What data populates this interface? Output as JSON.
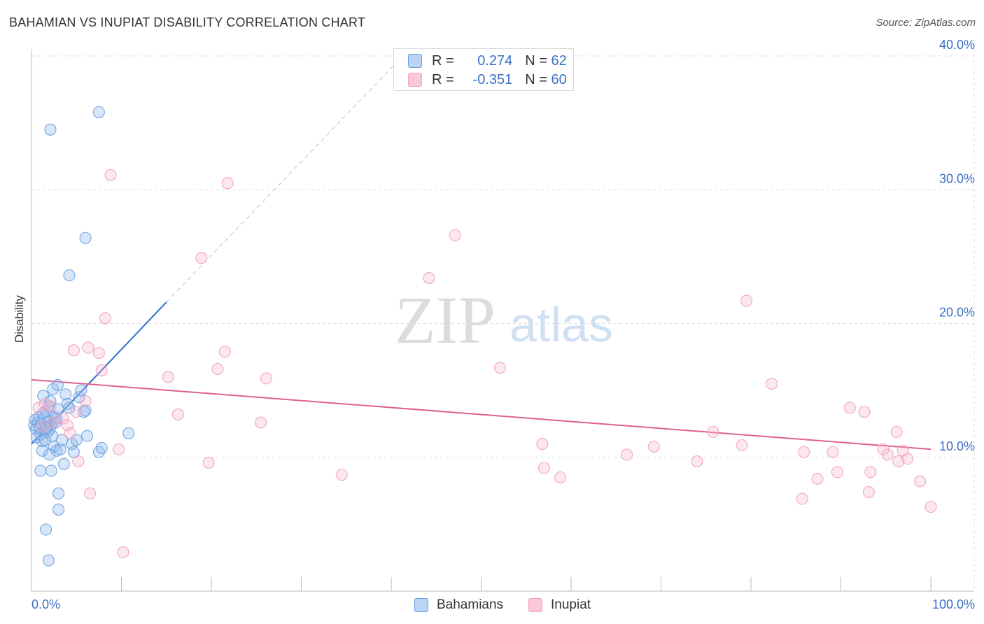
{
  "title": "BAHAMIAN VS INUPIAT DISABILITY CORRELATION CHART",
  "source": "Source: ZipAtlas.com",
  "watermark": {
    "zip": "ZIP",
    "atlas": "atlas"
  },
  "legend": {
    "rows": [
      {
        "r_label": "R =",
        "r_value": "0.274",
        "n_label": "N =",
        "n_value": "62"
      },
      {
        "r_label": "R =",
        "r_value": "-0.351",
        "n_label": "N =",
        "n_value": "60"
      }
    ]
  },
  "chart_data": {
    "type": "scatter",
    "title": "BAHAMIAN VS INUPIAT DISABILITY CORRELATION CHART",
    "xlabel": "",
    "ylabel": "Disability",
    "xlim": [
      0,
      100
    ],
    "ylim": [
      0,
      40
    ],
    "x_tick_labels": [
      "0.0%",
      "100.0%"
    ],
    "y_ticks": [
      10,
      20,
      30,
      40
    ],
    "y_tick_labels": [
      "10.0%",
      "20.0%",
      "30.0%",
      "40.0%"
    ],
    "grid": true,
    "legend_position": "bottom-center",
    "series": [
      {
        "name": "Bahamians",
        "color": "#6a9fe0",
        "line_color": "#2e6fd0",
        "trend": {
          "r": 0.274,
          "n": 62,
          "x_start": 0,
          "y_start": 11.0,
          "x_solid_end": 15,
          "y_solid_end": 21.6,
          "x_dash_end": 42,
          "y_dash_end": 40.5
        },
        "points": [
          [
            0.3,
            12.4
          ],
          [
            0.4,
            12.8
          ],
          [
            0.5,
            12.1
          ],
          [
            0.6,
            11.5
          ],
          [
            0.7,
            12.6
          ],
          [
            0.8,
            13.0
          ],
          [
            0.9,
            12.2
          ],
          [
            1.0,
            11.7
          ],
          [
            1.1,
            12.5
          ],
          [
            1.2,
            11.2
          ],
          [
            1.3,
            14.6
          ],
          [
            1.4,
            12.9
          ],
          [
            1.5,
            12.0
          ],
          [
            1.6,
            13.4
          ],
          [
            1.7,
            12.3
          ],
          [
            1.8,
            11.9
          ],
          [
            1.9,
            13.8
          ],
          [
            2.0,
            12.7
          ],
          [
            2.1,
            14.2
          ],
          [
            2.2,
            12.4
          ],
          [
            2.3,
            11.6
          ],
          [
            2.4,
            15.1
          ],
          [
            2.5,
            10.8
          ],
          [
            2.6,
            13.0
          ],
          [
            2.7,
            12.6
          ],
          [
            2.8,
            10.5
          ],
          [
            2.9,
            15.4
          ],
          [
            3.0,
            13.6
          ],
          [
            1.0,
            9.0
          ],
          [
            1.2,
            10.5
          ],
          [
            1.5,
            11.3
          ],
          [
            2.0,
            10.2
          ],
          [
            2.2,
            9.0
          ],
          [
            3.2,
            10.6
          ],
          [
            3.4,
            11.3
          ],
          [
            3.6,
            9.5
          ],
          [
            3.8,
            14.7
          ],
          [
            4.0,
            14.0
          ],
          [
            4.2,
            13.7
          ],
          [
            4.5,
            11.0
          ],
          [
            4.7,
            10.4
          ],
          [
            5.0,
            11.3
          ],
          [
            5.3,
            14.5
          ],
          [
            5.5,
            15.0
          ],
          [
            5.8,
            13.4
          ],
          [
            6.0,
            13.5
          ],
          [
            6.2,
            11.6
          ],
          [
            7.5,
            10.4
          ],
          [
            7.8,
            10.7
          ],
          [
            10.8,
            11.8
          ],
          [
            2.0,
            12.1
          ],
          [
            1.6,
            12.2
          ],
          [
            3.0,
            6.1
          ],
          [
            3.0,
            7.3
          ],
          [
            1.6,
            4.6
          ],
          [
            1.9,
            2.3
          ],
          [
            4.2,
            23.6
          ],
          [
            6.0,
            26.4
          ],
          [
            2.1,
            34.5
          ],
          [
            7.5,
            35.8
          ],
          [
            2.8,
            12.9
          ],
          [
            1.3,
            13.3
          ]
        ]
      },
      {
        "name": "Inupiat",
        "color": "#f0a0bb",
        "line_color": "#e0608f",
        "trend": {
          "r": -0.351,
          "n": 60,
          "x_start": 0,
          "y_start": 15.8,
          "x_end": 100,
          "y_end": 10.6
        },
        "points": [
          [
            0.8,
            13.7
          ],
          [
            1.2,
            12.3
          ],
          [
            1.5,
            14.0
          ],
          [
            2.1,
            13.8
          ],
          [
            2.4,
            12.6
          ],
          [
            3.5,
            12.9
          ],
          [
            4.0,
            12.4
          ],
          [
            4.3,
            11.8
          ],
          [
            5.0,
            13.4
          ],
          [
            5.2,
            9.7
          ],
          [
            6.0,
            14.2
          ],
          [
            6.5,
            7.3
          ],
          [
            6.3,
            18.2
          ],
          [
            4.7,
            18.0
          ],
          [
            7.5,
            17.8
          ],
          [
            7.8,
            16.5
          ],
          [
            8.2,
            20.4
          ],
          [
            8.8,
            31.1
          ],
          [
            9.7,
            10.6
          ],
          [
            10.2,
            2.9
          ],
          [
            15.2,
            16.0
          ],
          [
            16.3,
            13.2
          ],
          [
            18.9,
            24.9
          ],
          [
            19.7,
            9.6
          ],
          [
            20.7,
            16.6
          ],
          [
            21.5,
            17.9
          ],
          [
            21.8,
            30.5
          ],
          [
            25.5,
            12.6
          ],
          [
            26.1,
            15.9
          ],
          [
            34.5,
            8.7
          ],
          [
            44.2,
            23.4
          ],
          [
            47.1,
            26.6
          ],
          [
            52.1,
            16.7
          ],
          [
            56.8,
            11.0
          ],
          [
            57.0,
            9.2
          ],
          [
            58.8,
            8.5
          ],
          [
            66.2,
            10.2
          ],
          [
            69.2,
            10.8
          ],
          [
            74.0,
            9.7
          ],
          [
            75.8,
            11.9
          ],
          [
            79.0,
            10.9
          ],
          [
            79.5,
            21.7
          ],
          [
            82.3,
            15.5
          ],
          [
            85.7,
            6.9
          ],
          [
            85.9,
            10.4
          ],
          [
            87.4,
            8.4
          ],
          [
            89.1,
            10.4
          ],
          [
            89.6,
            8.9
          ],
          [
            91.0,
            13.7
          ],
          [
            92.6,
            13.4
          ],
          [
            93.1,
            7.4
          ],
          [
            93.3,
            8.9
          ],
          [
            94.7,
            10.6
          ],
          [
            95.2,
            10.2
          ],
          [
            96.2,
            11.9
          ],
          [
            96.4,
            9.7
          ],
          [
            96.9,
            10.5
          ],
          [
            97.4,
            9.9
          ],
          [
            98.8,
            8.2
          ],
          [
            100.0,
            6.3
          ]
        ]
      }
    ]
  }
}
